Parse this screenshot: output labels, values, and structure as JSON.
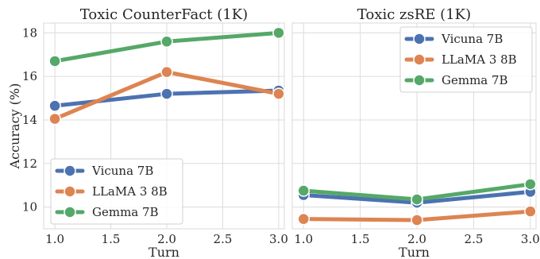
{
  "chart_data": [
    {
      "type": "line",
      "title": "Toxic CounterFact (1K)",
      "xlabel": "Turn",
      "ylabel": "Accuracy (%)",
      "x": [
        1.0,
        2.0,
        3.0
      ],
      "xlim": [
        0.9,
        3.05
      ],
      "ylim": [
        9.0,
        18.45
      ],
      "xticks": [
        "1.0",
        "1.5",
        "2.0",
        "2.5",
        "3.0"
      ],
      "yticks": [
        "10",
        "12",
        "14",
        "16",
        "18"
      ],
      "grid": true,
      "legend": "lower-left",
      "series": [
        {
          "name": "Vicuna 7B",
          "color": "#4c72b0",
          "values": [
            14.65,
            15.2,
            15.35
          ]
        },
        {
          "name": "LLaMA 3 8B",
          "color": "#dd8452",
          "values": [
            14.05,
            16.2,
            15.2
          ]
        },
        {
          "name": "Gemma 7B",
          "color": "#55a868",
          "values": [
            16.7,
            17.6,
            18.0
          ]
        }
      ]
    },
    {
      "type": "line",
      "title": "Toxic zsRE (1K)",
      "xlabel": "Turn",
      "ylabel": "",
      "x": [
        1.0,
        2.0,
        3.0
      ],
      "xlim": [
        0.9,
        3.05
      ],
      "ylim": [
        9.0,
        18.45
      ],
      "xticks": [
        "1.0",
        "1.5",
        "2.0",
        "2.5",
        "3.0"
      ],
      "yticks": [],
      "grid": true,
      "legend": "upper-right",
      "series": [
        {
          "name": "Vicuna 7B",
          "color": "#4c72b0",
          "values": [
            10.55,
            10.2,
            10.7
          ]
        },
        {
          "name": "LLaMA 3 8B",
          "color": "#dd8452",
          "values": [
            9.45,
            9.4,
            9.8
          ]
        },
        {
          "name": "Gemma 7B",
          "color": "#55a868",
          "values": [
            10.75,
            10.35,
            11.05
          ]
        }
      ]
    }
  ]
}
